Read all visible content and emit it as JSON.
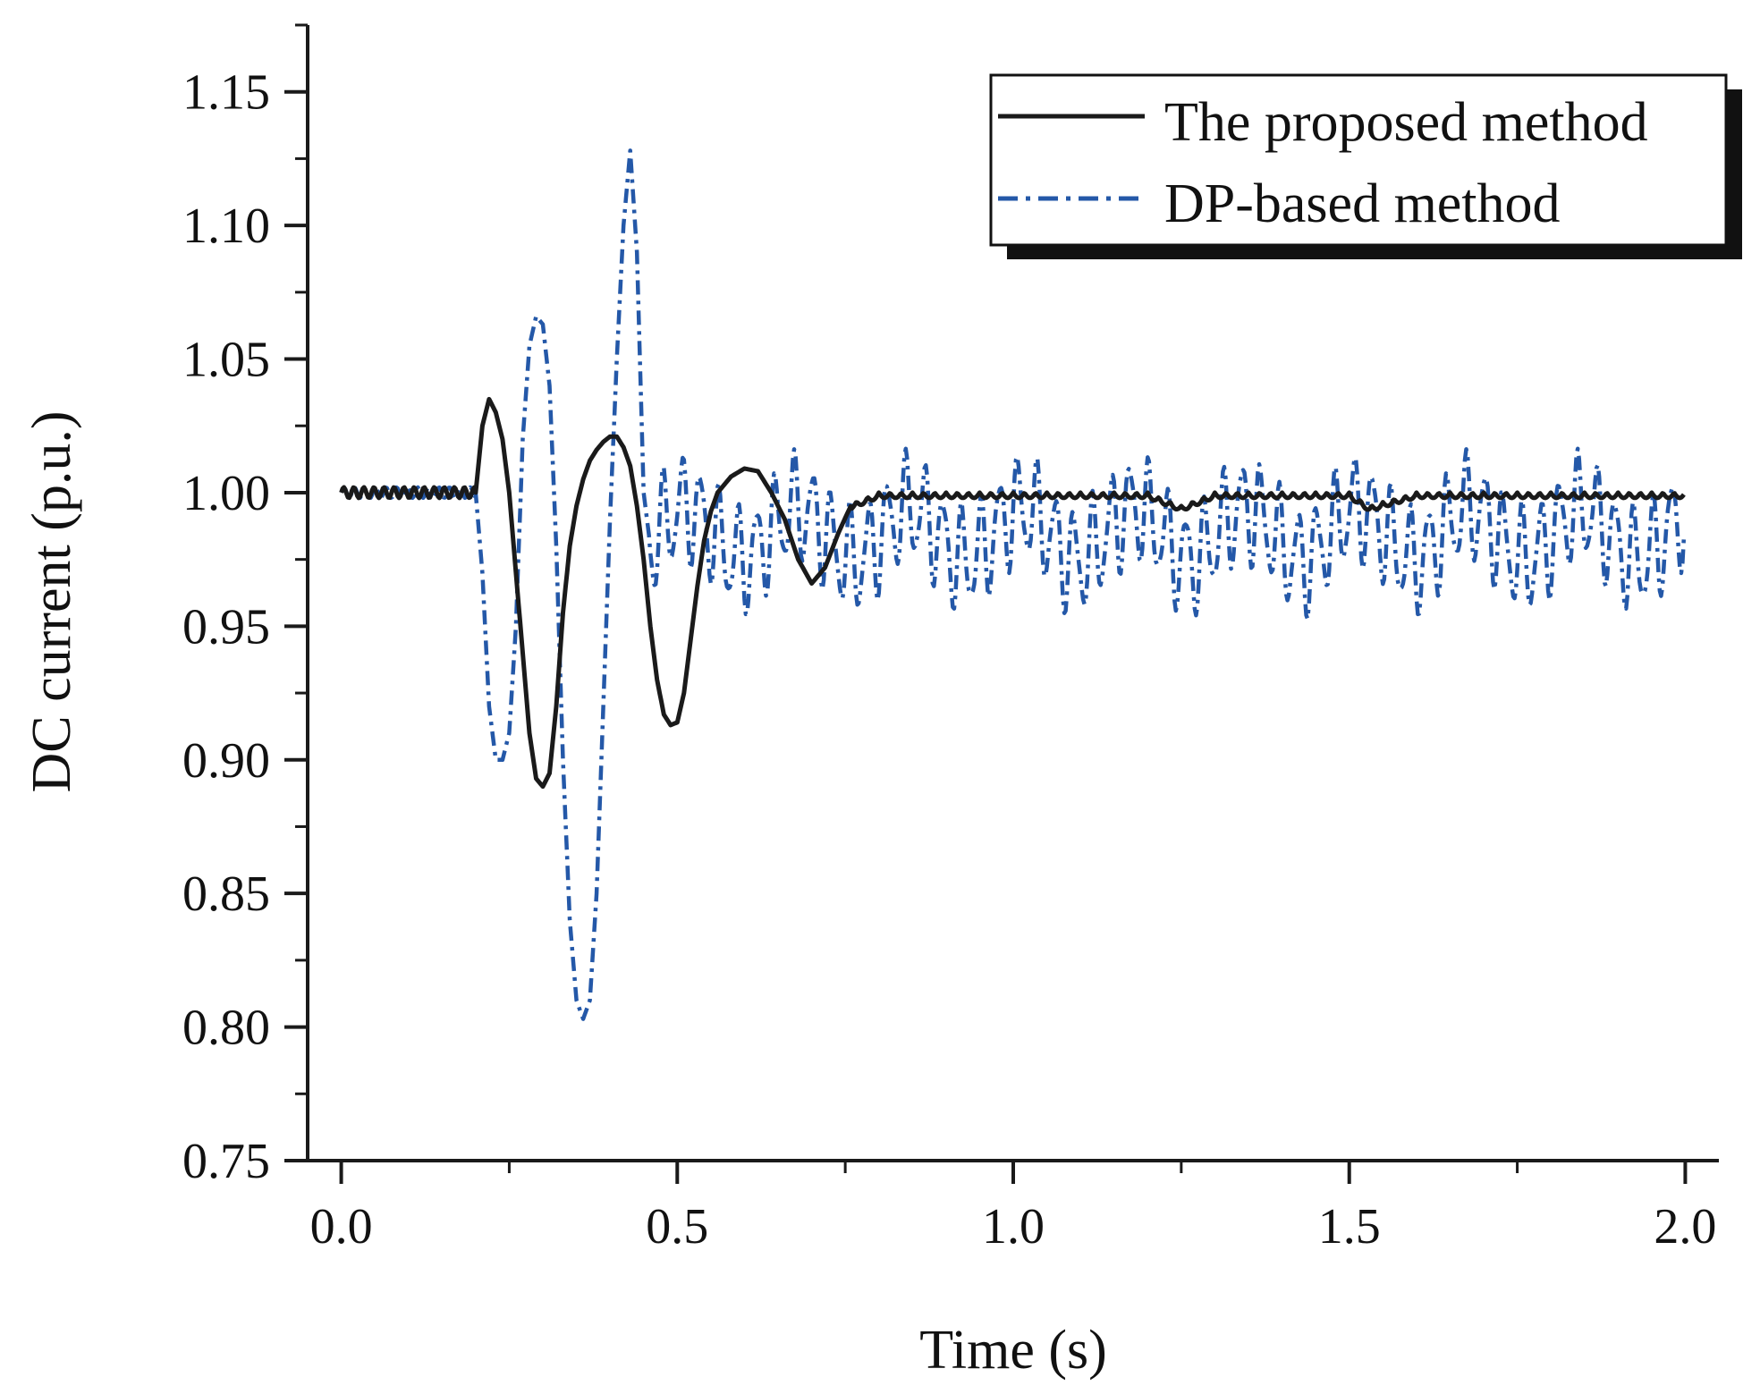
{
  "chart_data": {
    "type": "line",
    "title": "",
    "xlabel": "Time (s)",
    "ylabel": "DC current (p.u.)",
    "xlim": [
      -0.05,
      2.05
    ],
    "ylim": [
      0.75,
      1.175
    ],
    "x_ticks": [
      "0.0",
      "0.5",
      "1.0",
      "1.5",
      "2.0"
    ],
    "y_ticks": [
      "0.75",
      "0.80",
      "0.85",
      "0.90",
      "0.95",
      "1.00",
      "1.05",
      "1.10",
      "1.15"
    ],
    "x_tick_values": [
      0,
      0.5,
      1.0,
      1.5,
      2.0
    ],
    "y_tick_values": [
      0.75,
      0.8,
      0.85,
      0.9,
      0.95,
      1.0,
      1.05,
      1.1,
      1.15
    ],
    "legend_position": "top-right",
    "series": [
      {
        "name": "The proposed method",
        "color": "#1a1a1a",
        "style": "solid",
        "x": [
          0,
          0.05,
          0.1,
          0.15,
          0.2,
          0.21,
          0.22,
          0.23,
          0.24,
          0.25,
          0.26,
          0.27,
          0.28,
          0.29,
          0.3,
          0.31,
          0.32,
          0.33,
          0.34,
          0.35,
          0.36,
          0.37,
          0.38,
          0.39,
          0.4,
          0.41,
          0.42,
          0.43,
          0.44,
          0.45,
          0.46,
          0.47,
          0.48,
          0.49,
          0.5,
          0.51,
          0.52,
          0.53,
          0.54,
          0.55,
          0.56,
          0.58,
          0.6,
          0.62,
          0.64,
          0.66,
          0.68,
          0.7,
          0.72,
          0.74,
          0.76,
          0.8,
          0.9,
          1.0,
          1.1,
          1.2,
          1.25,
          1.3,
          1.4,
          1.5,
          1.53,
          1.6,
          1.7,
          1.8,
          1.9,
          2.0
        ],
        "y": [
          1.0,
          1.0,
          1.0,
          1.0,
          1.0,
          1.025,
          1.035,
          1.03,
          1.02,
          1.0,
          0.97,
          0.94,
          0.91,
          0.893,
          0.89,
          0.895,
          0.92,
          0.955,
          0.98,
          0.995,
          1.005,
          1.012,
          1.016,
          1.019,
          1.021,
          1.021,
          1.017,
          1.01,
          0.995,
          0.975,
          0.95,
          0.93,
          0.917,
          0.913,
          0.914,
          0.925,
          0.945,
          0.965,
          0.982,
          0.993,
          1.0,
          1.006,
          1.009,
          1.008,
          1.0,
          0.99,
          0.975,
          0.966,
          0.972,
          0.985,
          0.996,
          1.0,
          1.0,
          1.0,
          1.0,
          1.0,
          0.995,
          1.0,
          1.0,
          1.0,
          0.995,
          1.0,
          1.0,
          1.0,
          1.0,
          1.0
        ]
      },
      {
        "name": "DP-based method",
        "color": "#2458a8",
        "style": "dash-dot",
        "x": [
          0,
          0.1,
          0.2,
          0.21,
          0.22,
          0.23,
          0.24,
          0.25,
          0.26,
          0.27,
          0.28,
          0.29,
          0.3,
          0.31,
          0.32,
          0.33,
          0.34,
          0.35,
          0.36,
          0.37,
          0.38,
          0.39,
          0.4,
          0.41,
          0.42,
          0.43,
          0.44,
          0.45,
          0.46,
          0.5,
          0.6,
          0.7,
          0.8,
          0.9,
          1.0,
          1.1,
          1.2,
          1.3,
          1.4,
          1.5,
          1.6,
          1.7,
          1.8,
          1.9,
          2.0
        ],
        "y": [
          1.0,
          1.0,
          1.0,
          0.97,
          0.92,
          0.9,
          0.9,
          0.91,
          0.95,
          1.02,
          1.055,
          1.066,
          1.063,
          1.04,
          0.98,
          0.9,
          0.84,
          0.81,
          0.803,
          0.81,
          0.85,
          0.92,
          0.99,
          1.05,
          1.1,
          1.128,
          1.09,
          1.0,
          0.98,
          0.98,
          0.98,
          0.98,
          0.98,
          0.98,
          0.98,
          0.98,
          0.98,
          0.98,
          0.98,
          0.98,
          0.98,
          0.98,
          0.98,
          0.98,
          0.98
        ],
        "oscillation_band": [
          0.955,
          1.02
        ]
      }
    ]
  }
}
